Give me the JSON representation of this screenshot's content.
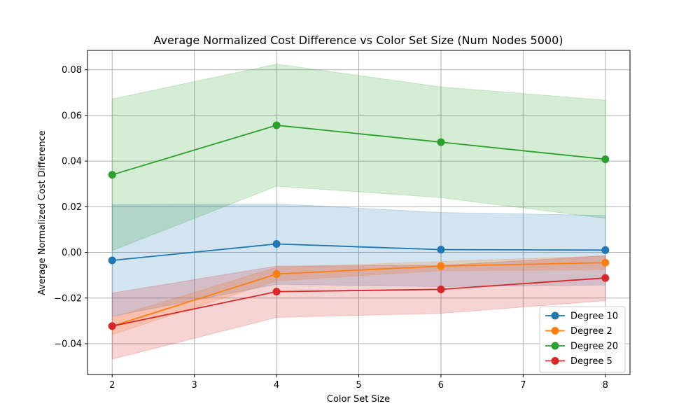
{
  "chart_data": {
    "type": "line",
    "title": "Average Normalized Cost Difference vs Color Set Size (Num Nodes 5000)",
    "xlabel": "Color Set Size",
    "ylabel": "Average Normalized Cost Difference",
    "xlim": [
      1.7,
      8.3
    ],
    "ylim": [
      -0.0535,
      0.0885
    ],
    "x_ticks": [
      2,
      3,
      4,
      5,
      6,
      7,
      8
    ],
    "y_ticks": [
      -0.04,
      -0.02,
      0.0,
      0.02,
      0.04,
      0.06,
      0.08
    ],
    "y_tick_labels": [
      "−0.04",
      "−0.02",
      "0.00",
      "0.02",
      "0.04",
      "0.06",
      "0.08"
    ],
    "grid": true,
    "legend_position": "bottom-right",
    "x": [
      2,
      4,
      6,
      8
    ],
    "series": [
      {
        "name": "Degree 10",
        "color": "#1f77b4",
        "values": [
          -0.0035,
          0.0037,
          0.0012,
          0.001
        ],
        "upper": [
          0.021,
          0.0213,
          0.0175,
          0.0162
        ],
        "lower": [
          -0.028,
          -0.014,
          -0.015,
          -0.0143
        ]
      },
      {
        "name": "Degree 2",
        "color": "#ff7f0e",
        "values": [
          -0.0323,
          -0.0095,
          -0.006,
          -0.0045
        ],
        "upper": [
          -0.0285,
          -0.0065,
          -0.004,
          -0.0015
        ],
        "lower": [
          -0.036,
          -0.0125,
          -0.008,
          -0.0075
        ]
      },
      {
        "name": "Degree 20",
        "color": "#2ca02c",
        "values": [
          0.034,
          0.0557,
          0.0483,
          0.0408
        ],
        "upper": [
          0.0672,
          0.0825,
          0.0725,
          0.0667
        ],
        "lower": [
          0.0008,
          0.029,
          0.024,
          0.0149
        ]
      },
      {
        "name": "Degree 5",
        "color": "#d62728",
        "values": [
          -0.0323,
          -0.0172,
          -0.0162,
          -0.0112
        ],
        "upper": [
          -0.0178,
          -0.006,
          -0.0057,
          -0.0015
        ],
        "lower": [
          -0.0468,
          -0.0285,
          -0.0267,
          -0.0212
        ]
      }
    ]
  }
}
